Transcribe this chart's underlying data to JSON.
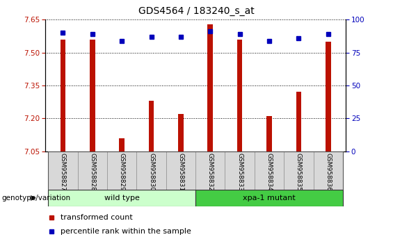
{
  "title": "GDS4564 / 183240_s_at",
  "samples": [
    "GSM958827",
    "GSM958828",
    "GSM958829",
    "GSM958830",
    "GSM958831",
    "GSM958832",
    "GSM958833",
    "GSM958834",
    "GSM958835",
    "GSM958836"
  ],
  "transformed_count": [
    7.56,
    7.56,
    7.11,
    7.28,
    7.22,
    7.63,
    7.56,
    7.21,
    7.32,
    7.55
  ],
  "percentile_rank": [
    90,
    89,
    84,
    87,
    87,
    91,
    89,
    84,
    86,
    89
  ],
  "ylim_left": [
    7.05,
    7.65
  ],
  "ylim_right": [
    0,
    100
  ],
  "yticks_left": [
    7.05,
    7.2,
    7.35,
    7.5,
    7.65
  ],
  "yticks_right": [
    0,
    25,
    50,
    75,
    100
  ],
  "bar_color": "#bb1100",
  "dot_color": "#0000bb",
  "wild_type_color": "#ccffcc",
  "mutant_color": "#44cc44",
  "wild_type_label": "wild type",
  "mutant_label": "xpa-1 mutant",
  "genotype_label": "genotype/variation",
  "legend_tc": "transformed count",
  "legend_pr": "percentile rank within the sample"
}
